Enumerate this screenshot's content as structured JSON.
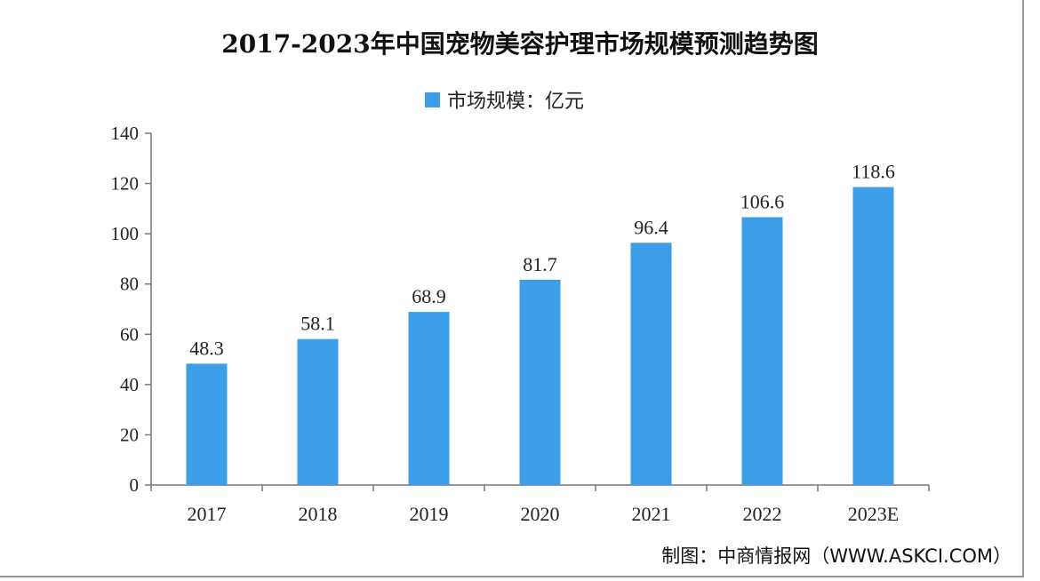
{
  "chart_data": {
    "type": "bar",
    "title": "2017-2023年中国宠物美容护理市场规模预测趋势图",
    "categories": [
      "2017",
      "2018",
      "2019",
      "2020",
      "2021",
      "2022",
      "2023E"
    ],
    "series": [
      {
        "name": "市场规模：亿元",
        "values": [
          48.3,
          58.1,
          68.9,
          81.7,
          96.4,
          106.6,
          118.6
        ]
      }
    ],
    "data_labels": [
      "48.3",
      "58.1",
      "68.9",
      "81.7",
      "96.4",
      "106.6",
      "118.6"
    ],
    "ylim": [
      0,
      140
    ],
    "yticks": [
      0,
      20,
      40,
      60,
      80,
      100,
      120,
      140
    ],
    "xlabel": "",
    "ylabel": "",
    "grid": false,
    "legend_position": "top-center",
    "bar_color": "#3c9de8"
  },
  "source": "制图：中商情报网（WWW.ASKCI.COM）"
}
